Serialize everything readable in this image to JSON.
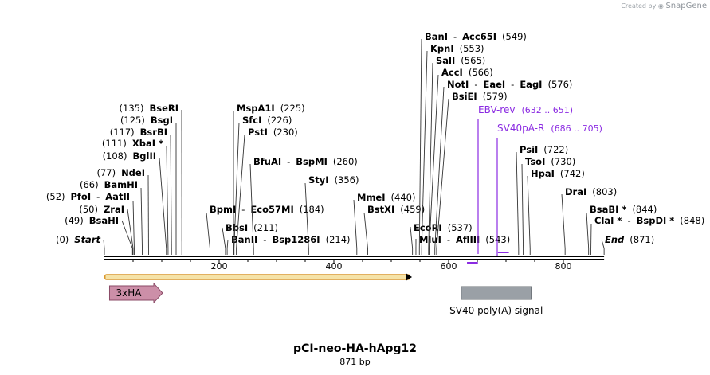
{
  "branding": {
    "created_by": "Created by",
    "app": "SnapGene"
  },
  "map": {
    "title": "pCI-neo-HA-hApg12",
    "length_label": "871 bp",
    "length": 871,
    "ticks": [
      "200",
      "400",
      "600",
      "800"
    ],
    "sites": [
      {
        "side": "L",
        "parts": [
          {
            "t": "(0)"
          },
          {
            "t": "Start",
            "b": true,
            "i": true
          }
        ],
        "line": {
          "pos": 0
        }
      },
      {
        "side": "L",
        "parts": [
          {
            "t": "(49)"
          },
          {
            "t": "BsaHI",
            "b": true
          }
        ],
        "line": {
          "pos": 49
        }
      },
      {
        "side": "L",
        "parts": [
          {
            "t": "(50)"
          },
          {
            "t": "ZraI",
            "b": true
          }
        ],
        "line": {
          "pos": 50
        }
      },
      {
        "side": "L",
        "parts": [
          {
            "t": "(52)"
          },
          {
            "t": "PfoI",
            "b": true
          },
          {
            "t": "-"
          },
          {
            "t": "AatII",
            "b": true
          }
        ],
        "line": {
          "pos": 52
        }
      },
      {
        "side": "L",
        "parts": [
          {
            "t": "(66)"
          },
          {
            "t": "BamHI",
            "b": true
          }
        ],
        "line": {
          "pos": 66
        }
      },
      {
        "side": "L",
        "parts": [
          {
            "t": "(77)"
          },
          {
            "t": "NdeI",
            "b": true
          }
        ],
        "line": {
          "pos": 77
        }
      },
      {
        "side": "L",
        "parts": [
          {
            "t": "(108)"
          },
          {
            "t": "BglII",
            "b": true
          }
        ],
        "line": {
          "pos": 108
        }
      },
      {
        "side": "L",
        "parts": [
          {
            "t": "(111)"
          },
          {
            "t": "XbaI *",
            "b": true
          }
        ],
        "line": {
          "pos": 111
        }
      },
      {
        "side": "L",
        "parts": [
          {
            "t": "(117)"
          },
          {
            "t": "BsrBI",
            "b": true
          }
        ],
        "line": {
          "pos": 117
        }
      },
      {
        "side": "L",
        "parts": [
          {
            "t": "(125)"
          },
          {
            "t": "BsgI",
            "b": true
          }
        ],
        "line": {
          "pos": 125
        }
      },
      {
        "side": "L",
        "parts": [
          {
            "t": "(135)"
          },
          {
            "t": "BseRI",
            "b": true
          }
        ],
        "line": {
          "pos": 135
        }
      },
      {
        "side": "R",
        "parts": [
          {
            "t": "BpmI",
            "b": true
          },
          {
            "t": "-"
          },
          {
            "t": "Eco57MI",
            "b": true
          },
          {
            "t": "(184)"
          }
        ],
        "line": {
          "pos": 184
        }
      },
      {
        "side": "R",
        "parts": [
          {
            "t": "BbsI",
            "b": true
          },
          {
            "t": "(211)"
          }
        ],
        "line": {
          "pos": 211
        }
      },
      {
        "side": "R",
        "parts": [
          {
            "t": "BanII",
            "b": true
          },
          {
            "t": "-"
          },
          {
            "t": "Bsp1286I",
            "b": true
          },
          {
            "t": "(214)"
          }
        ],
        "line": {
          "pos": 214
        }
      },
      {
        "side": "R",
        "parts": [
          {
            "t": "MspA1I",
            "b": true
          },
          {
            "t": "(225)"
          }
        ],
        "line": {
          "pos": 225
        }
      },
      {
        "side": "R",
        "parts": [
          {
            "t": "SfcI",
            "b": true
          },
          {
            "t": "(226)"
          }
        ],
        "line": {
          "pos": 226
        }
      },
      {
        "side": "R",
        "parts": [
          {
            "t": "PstI",
            "b": true
          },
          {
            "t": "(230)"
          }
        ],
        "line": {
          "pos": 230
        }
      },
      {
        "side": "R",
        "parts": [
          {
            "t": "BfuAI",
            "b": true
          },
          {
            "t": "-"
          },
          {
            "t": "BspMI",
            "b": true
          },
          {
            "t": "(260)"
          }
        ],
        "line": {
          "pos": 260
        }
      },
      {
        "side": "R",
        "parts": [
          {
            "t": "StyI",
            "b": true
          },
          {
            "t": "(356)"
          }
        ],
        "line": {
          "pos": 356
        }
      },
      {
        "side": "R",
        "parts": [
          {
            "t": "MmeI",
            "b": true
          },
          {
            "t": "(440)"
          }
        ],
        "line": {
          "pos": 440
        }
      },
      {
        "side": "R",
        "parts": [
          {
            "t": "BstXI",
            "b": true
          },
          {
            "t": "(459)"
          }
        ],
        "line": {
          "pos": 459
        }
      },
      {
        "side": "R",
        "parts": [
          {
            "t": "EcoRI",
            "b": true
          },
          {
            "t": "(537)"
          }
        ],
        "line": {
          "pos": 537
        }
      },
      {
        "side": "R",
        "parts": [
          {
            "t": "MluI",
            "b": true
          },
          {
            "t": "-"
          },
          {
            "t": "AflIII",
            "b": true
          },
          {
            "t": "(543)"
          }
        ],
        "line": {
          "pos": 543
        }
      },
      {
        "side": "R",
        "parts": [
          {
            "t": "BanI",
            "b": true
          },
          {
            "t": "-"
          },
          {
            "t": "Acc65I",
            "b": true
          },
          {
            "t": "(549)"
          }
        ],
        "line": {
          "pos": 549
        }
      },
      {
        "side": "R",
        "parts": [
          {
            "t": "KpnI",
            "b": true
          },
          {
            "t": "(553)"
          }
        ],
        "line": {
          "pos": 553
        }
      },
      {
        "side": "R",
        "parts": [
          {
            "t": "SalI",
            "b": true
          },
          {
            "t": "(565)"
          }
        ],
        "line": {
          "pos": 565
        }
      },
      {
        "side": "R",
        "parts": [
          {
            "t": "AccI",
            "b": true
          },
          {
            "t": "(566)"
          }
        ],
        "line": {
          "pos": 566
        }
      },
      {
        "side": "R",
        "parts": [
          {
            "t": "NotI",
            "b": true
          },
          {
            "t": "-"
          },
          {
            "t": "EaeI",
            "b": true
          },
          {
            "t": "-"
          },
          {
            "t": "EagI",
            "b": true
          },
          {
            "t": "(576)"
          }
        ],
        "line": {
          "pos": 576
        }
      },
      {
        "side": "R",
        "parts": [
          {
            "t": "BsiEI",
            "b": true
          },
          {
            "t": "(579)"
          }
        ],
        "line": {
          "pos": 579
        }
      },
      {
        "side": "R",
        "parts": [
          {
            "t": "PsiI",
            "b": true
          },
          {
            "t": "(722)"
          }
        ],
        "line": {
          "pos": 722
        }
      },
      {
        "side": "R",
        "parts": [
          {
            "t": "TsoI",
            "b": true
          },
          {
            "t": "(730)"
          }
        ],
        "line": {
          "pos": 730
        }
      },
      {
        "side": "R",
        "parts": [
          {
            "t": "HpaI",
            "b": true
          },
          {
            "t": "(742)"
          }
        ],
        "line": {
          "pos": 742
        }
      },
      {
        "side": "R",
        "parts": [
          {
            "t": "DraI",
            "b": true
          },
          {
            "t": "(803)"
          }
        ],
        "line": {
          "pos": 803
        }
      },
      {
        "side": "R",
        "parts": [
          {
            "t": "BsaBI *",
            "b": true
          },
          {
            "t": "(844)"
          }
        ],
        "line": {
          "pos": 844
        }
      },
      {
        "side": "R",
        "parts": [
          {
            "t": "ClaI *",
            "b": true
          },
          {
            "t": "-"
          },
          {
            "t": "BspDI *",
            "b": true
          },
          {
            "t": "(848)"
          }
        ],
        "line": {
          "pos": 848
        }
      },
      {
        "side": "R",
        "parts": [
          {
            "t": "End",
            "b": true,
            "i": true
          },
          {
            "t": "(871)"
          }
        ],
        "line": {
          "pos": 871
        }
      }
    ],
    "primers": [
      {
        "name": "EBV-rev",
        "range": "(632 .. 651)",
        "start": 632,
        "end": 651,
        "color": "#8b2be2"
      },
      {
        "name": "SV40pA-R",
        "range": "(686 .. 705)",
        "start": 686,
        "end": 705,
        "color": "#8b2be2"
      }
    ],
    "orf": {
      "start": 1,
      "end": 532,
      "color": "#d9962b"
    },
    "features": [
      {
        "name": "3xHA",
        "start": 9,
        "end": 100,
        "color": "#cc8fa8",
        "stroke": "#8a4a66",
        "type": "arrow"
      },
      {
        "name": "SV40 poly(A) signal",
        "start": 622,
        "end": 744,
        "color": "#9aa0a6",
        "stroke": "#6b7076",
        "type": "box"
      }
    ]
  }
}
